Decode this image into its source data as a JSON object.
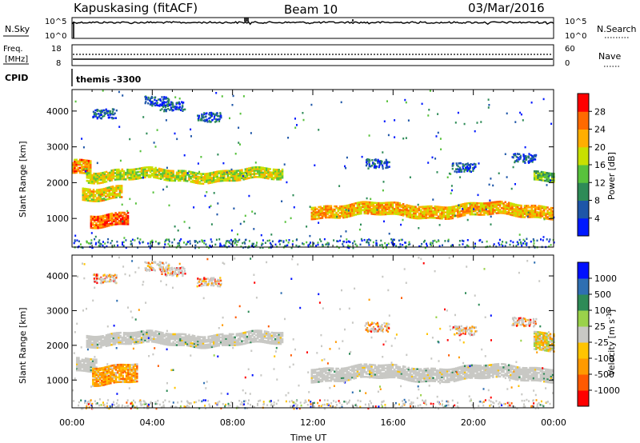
{
  "header": {
    "title": "Kapuskasing (fitACF)",
    "beam": "Beam 10",
    "date": "03/Mar/2016"
  },
  "panels": {
    "nsky": {
      "label": "N.Sky",
      "left_ticks": [
        "10^5",
        "10^0"
      ],
      "right_ticks": [
        "10^5",
        "10^0"
      ],
      "right_label": "N.Search"
    },
    "freq": {
      "label_line1": "Freq.",
      "label_line2": "[MHz]",
      "left_ticks": [
        "18",
        "8"
      ],
      "right_ticks": [
        "60",
        "0"
      ],
      "right_label": "Nave"
    },
    "cpid": {
      "label": "CPID",
      "value": "themis -3300"
    }
  },
  "colors": {
    "power": [
      "#0018ff",
      "#1e56a8",
      "#2e8b57",
      "#58c23c",
      "#c8e000",
      "#ffae00",
      "#ff6a00",
      "#ff0000"
    ],
    "velocity": [
      "#ff0000",
      "#ff5a00",
      "#ff9a00",
      "#ffc400",
      "#c8c8c4",
      "#9ad24a",
      "#2e8b57",
      "#2f6fb2",
      "#0010ff"
    ],
    "ground_scatter": "#c8c8c4"
  },
  "chart_data": [
    {
      "type": "heatmap",
      "name": "power",
      "ylabel": "Slant Range [km]",
      "ylim": [
        200,
        4600
      ],
      "xlim_hours": [
        0,
        24
      ],
      "y_ticks": [
        "1000",
        "2000",
        "3000",
        "4000"
      ],
      "colorbar": {
        "label": "Power [dB]",
        "ticks": [
          "28",
          "24",
          "20",
          "16",
          "12",
          "8",
          "4"
        ],
        "range": [
          0,
          32
        ]
      },
      "bands": [
        {
          "start_h": 0.0,
          "end_h": 0.9,
          "range_km": [
            2300,
            2700
          ],
          "level": 24
        },
        {
          "start_h": 0.7,
          "end_h": 10.5,
          "range_km": [
            2050,
            2350
          ],
          "level": 18
        },
        {
          "start_h": 0.5,
          "end_h": 2.5,
          "range_km": [
            1550,
            1900
          ],
          "level": 20
        },
        {
          "start_h": 0.9,
          "end_h": 2.8,
          "range_km": [
            800,
            1150
          ],
          "level": 26
        },
        {
          "start_h": 11.9,
          "end_h": 24.0,
          "range_km": [
            1050,
            1400
          ],
          "level": 22
        },
        {
          "start_h": 23.0,
          "end_h": 24.0,
          "range_km": [
            2100,
            2350
          ],
          "level": 14
        }
      ]
    },
    {
      "type": "heatmap",
      "name": "velocity",
      "xlabel": "Time UT",
      "ylabel": "Slant Range [km]",
      "ylim": [
        200,
        4600
      ],
      "xlim_hours": [
        0,
        24
      ],
      "x_ticks": [
        "00:00",
        "04:00",
        "08:00",
        "12:00",
        "16:00",
        "20:00",
        "00:00"
      ],
      "y_ticks": [
        "1000",
        "2000",
        "3000",
        "4000"
      ],
      "colorbar": {
        "label": "Velocity [m s",
        "label_superscript": "-1",
        "label_close": "]",
        "ticks": [
          "1000",
          "500",
          "100",
          "25",
          "-25",
          "-100",
          "-500",
          "-1000"
        ]
      },
      "bands": [
        {
          "start_h": 0.7,
          "end_h": 10.5,
          "range_km": [
            2000,
            2350
          ],
          "kind": "ground"
        },
        {
          "start_h": 0.2,
          "end_h": 1.2,
          "range_km": [
            1300,
            1700
          ],
          "kind": "ground"
        },
        {
          "start_h": 1.0,
          "end_h": 3.2,
          "range_km": [
            900,
            1400
          ],
          "kind": "negative"
        },
        {
          "start_h": 11.9,
          "end_h": 24.0,
          "range_km": [
            1000,
            1400
          ],
          "kind": "ground"
        },
        {
          "start_h": 23.0,
          "end_h": 24.0,
          "range_km": [
            1900,
            2400
          ],
          "kind": "mixed"
        }
      ]
    }
  ]
}
